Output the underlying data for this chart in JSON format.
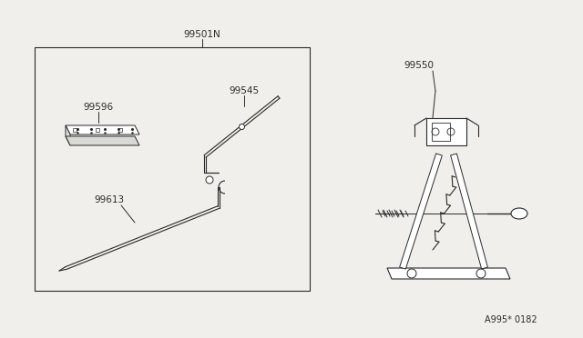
{
  "bg_color": "#f0efeb",
  "line_color": "#2a2a2a",
  "text_color": "#2a2a2a",
  "title_ref": "A995* 0182",
  "fig_width": 6.4,
  "fig_height": 3.72
}
